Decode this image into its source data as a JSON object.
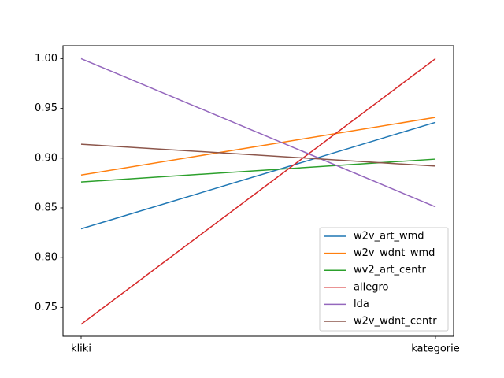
{
  "chart_data": {
    "type": "line",
    "title": "",
    "xlabel": "",
    "ylabel": "",
    "categories": [
      "kliki",
      "kategorie"
    ],
    "ylim": [
      0.721,
      1.013
    ],
    "yticks": [
      0.75,
      0.8,
      0.85,
      0.9,
      0.95,
      1.0
    ],
    "ytick_labels": [
      "0.75",
      "0.80",
      "0.85",
      "0.90",
      "0.95",
      "1.00"
    ],
    "grid": false,
    "legend_position": "bottom-right",
    "series": [
      {
        "name": "w2v_art_wmd",
        "color": "#1f77b4",
        "values": [
          0.829,
          0.936
        ]
      },
      {
        "name": "w2v_wdnt_wmd",
        "color": "#ff7f0e",
        "values": [
          0.883,
          0.941
        ]
      },
      {
        "name": "wv2_art_centr",
        "color": "#2ca02c",
        "values": [
          0.876,
          0.899
        ]
      },
      {
        "name": "allegro",
        "color": "#d62728",
        "values": [
          0.733,
          1.0
        ]
      },
      {
        "name": "lda",
        "color": "#9467bd",
        "values": [
          1.0,
          0.851
        ]
      },
      {
        "name": "w2v_wdnt_centr",
        "color": "#8c564b",
        "values": [
          0.914,
          0.892
        ]
      }
    ]
  }
}
